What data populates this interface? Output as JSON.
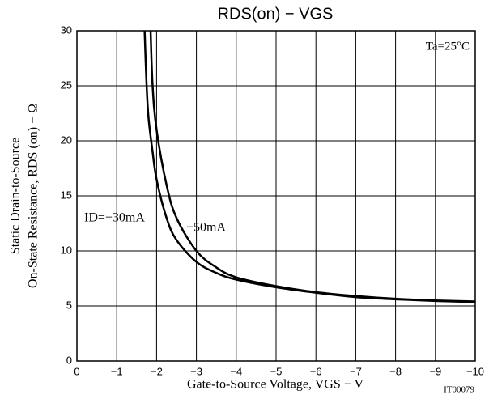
{
  "chart_data": {
    "type": "line",
    "title": "RDS(on) − VGS",
    "x_label": "Gate-to-Source Voltage, VGS − V",
    "y_label": [
      "Static Drain-to-Source",
      "On-State Resistance, RDS (on) − Ω"
    ],
    "annotation": "Ta=25°C",
    "figure_code": "IT00079",
    "xlim": [
      0,
      -10
    ],
    "xticks": [
      0,
      {
        "value": -1,
        "label": "−1"
      },
      {
        "value": -2,
        "label": "−2"
      },
      {
        "value": -3,
        "label": "−3"
      },
      {
        "value": -4,
        "label": "−4"
      },
      {
        "value": -5,
        "label": "−5"
      },
      {
        "value": -6,
        "label": "−6"
      },
      {
        "value": -7,
        "label": "−7"
      },
      {
        "value": -8,
        "label": "−8"
      },
      {
        "value": -9,
        "label": "−9"
      },
      {
        "value": -10,
        "label": "−10"
      }
    ],
    "ylim": [
      0,
      30
    ],
    "yticks": [
      0,
      5,
      10,
      15,
      20,
      25,
      30
    ],
    "grid": true,
    "series": [
      {
        "name": "ID=−30mA",
        "color": "#000000",
        "x": [
          -1.7,
          -1.75,
          -1.8,
          -1.9,
          -2,
          -2.25,
          -2.5,
          -3,
          -3.5,
          -4,
          -5,
          -6,
          -7,
          -8,
          -9,
          -10
        ],
        "values": [
          30,
          25,
          22,
          19,
          16.5,
          13,
          11,
          9,
          8,
          7.4,
          6.7,
          6.2,
          5.8,
          5.6,
          5.45,
          5.35
        ]
      },
      {
        "name": "−50mA",
        "color": "#000000",
        "x": [
          -1.85,
          -1.9,
          -2,
          -2.25,
          -2.5,
          -3,
          -3.5,
          -4,
          -5,
          -6,
          -7,
          -8,
          -9,
          -10
        ],
        "values": [
          30,
          25,
          21,
          16,
          13,
          10,
          8.5,
          7.6,
          6.8,
          6.25,
          5.9,
          5.65,
          5.5,
          5.4
        ]
      }
    ]
  }
}
